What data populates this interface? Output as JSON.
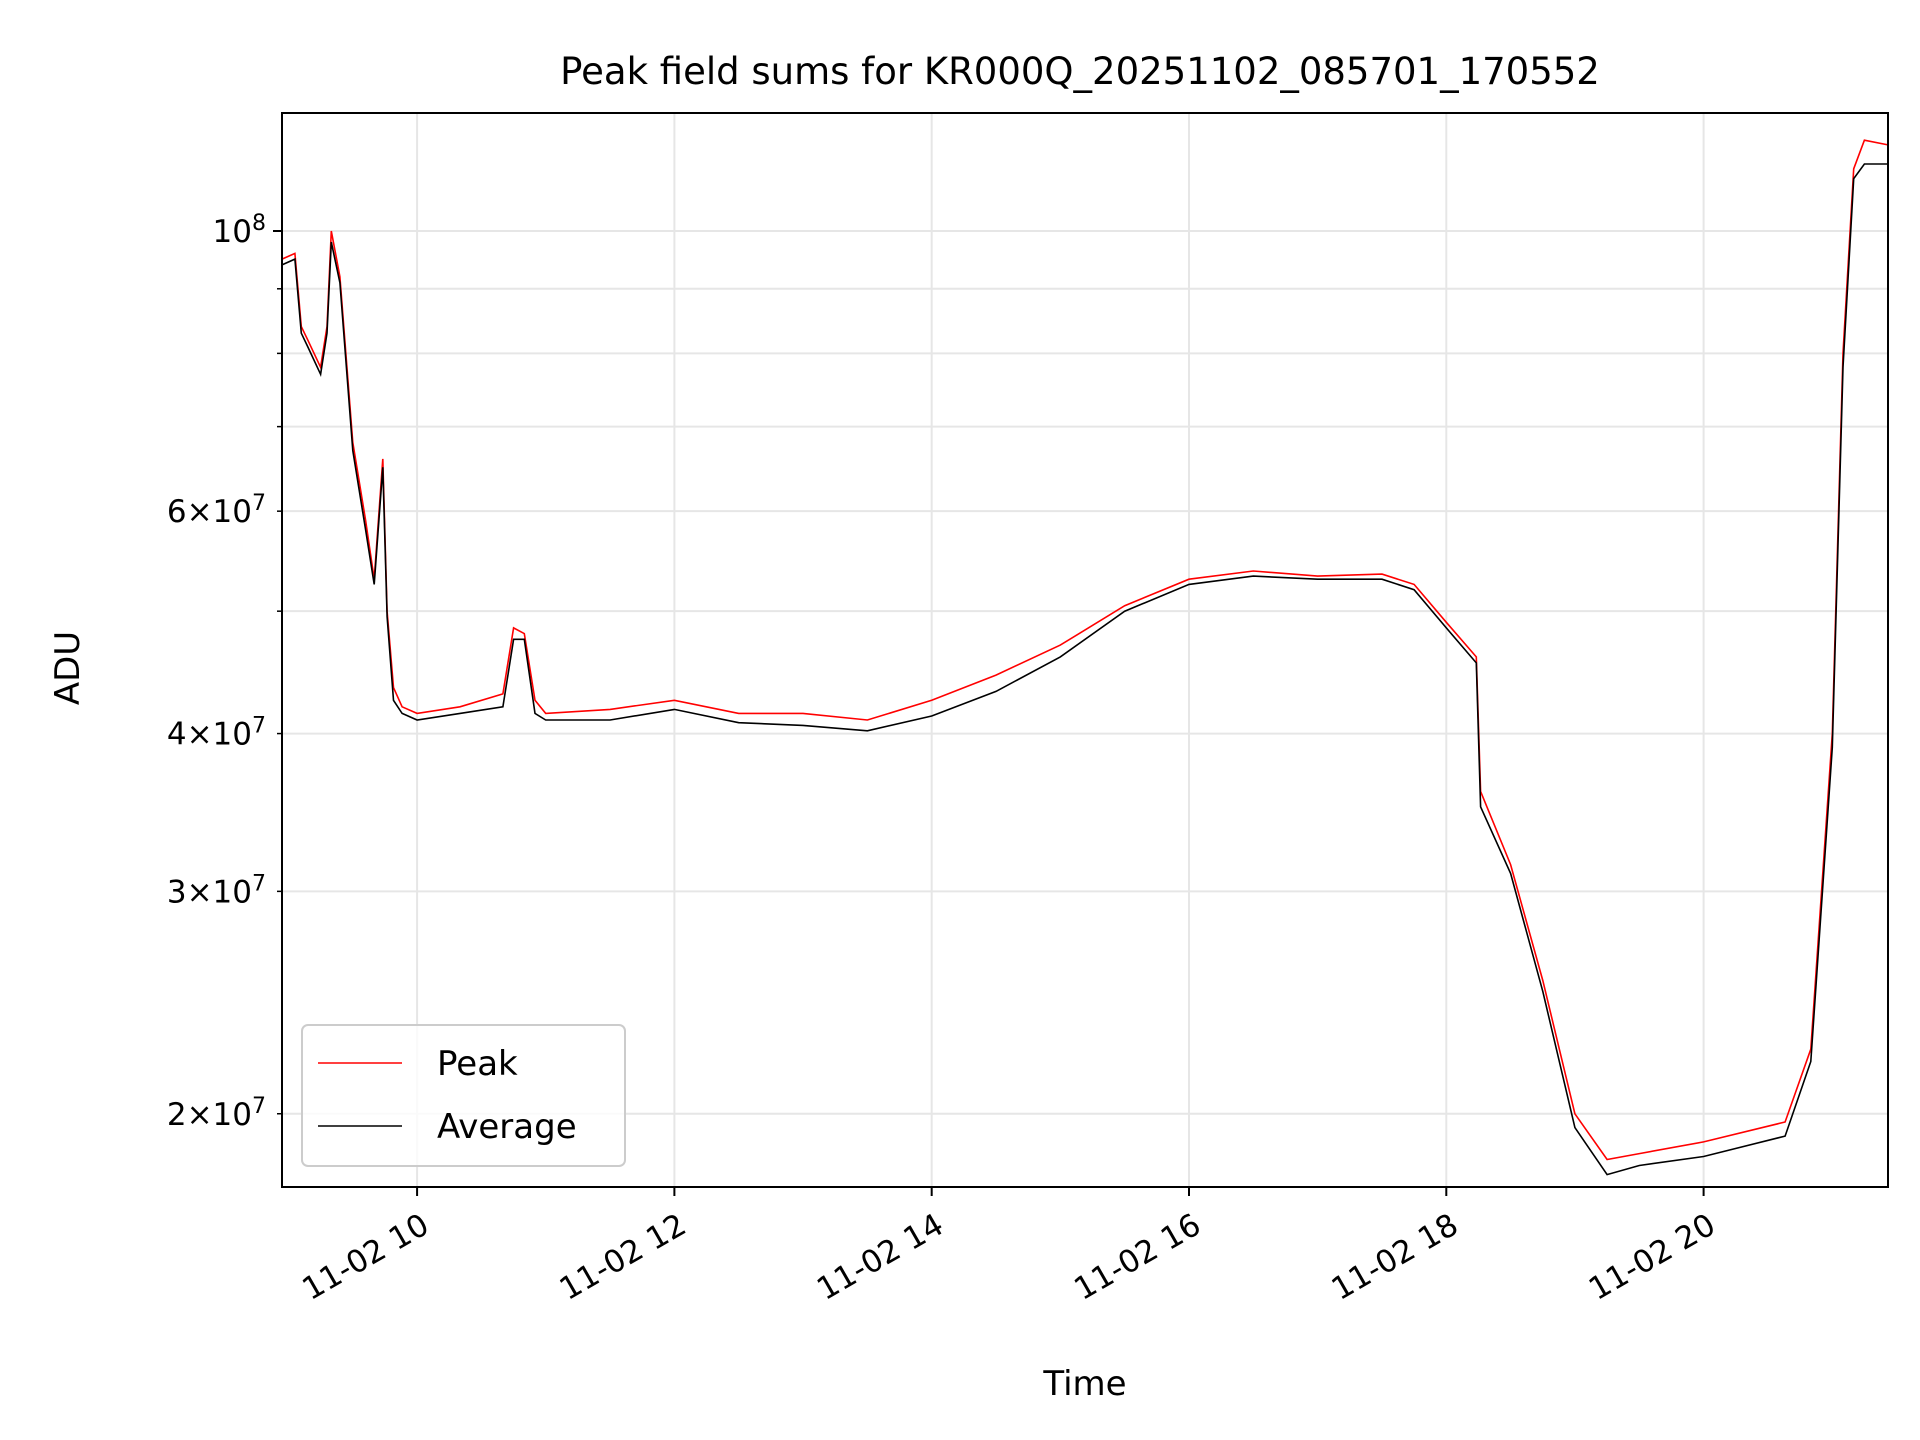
{
  "chart_data": {
    "type": "line",
    "title": "Peak field sums for KR000Q_20251102_085701_170552",
    "xlabel": "Time",
    "ylabel": "ADU",
    "x_tick_labels": [
      "11-02 10",
      "11-02 12",
      "11-02 14",
      "11-02 16",
      "11-02 18",
      "11-02 20"
    ],
    "y_tick_labels": [
      "2×10^7",
      "3×10^7",
      "4×10^7",
      "6×10^7",
      "10^8"
    ],
    "xlim": [
      "2025-11-02 08:57",
      "2025-11-02 21:26"
    ],
    "ylim": [
      17500000,
      124000000
    ],
    "yscale": "log",
    "grid": true,
    "legend_position": "lower-left",
    "colors": {
      "peak": "#ff0000",
      "average": "#000000",
      "grid": "#e6e6e6"
    },
    "series": [
      {
        "name": "Peak",
        "x": [
          "2025-11-02 08:57",
          "2025-11-02 09:03",
          "2025-11-02 09:06",
          "2025-11-02 09:09",
          "2025-11-02 09:15",
          "2025-11-02 09:18",
          "2025-11-02 09:20",
          "2025-11-02 09:24",
          "2025-11-02 09:30",
          "2025-11-02 09:36",
          "2025-11-02 09:40",
          "2025-11-02 09:44",
          "2025-11-02 09:46",
          "2025-11-02 09:49",
          "2025-11-02 09:53",
          "2025-11-02 10:00",
          "2025-11-02 10:20",
          "2025-11-02 10:40",
          "2025-11-02 10:45",
          "2025-11-02 10:50",
          "2025-11-02 10:55",
          "2025-11-02 11:00",
          "2025-11-02 11:30",
          "2025-11-02 12:00",
          "2025-11-02 12:30",
          "2025-11-02 13:00",
          "2025-11-02 13:30",
          "2025-11-02 14:00",
          "2025-11-02 14:30",
          "2025-11-02 15:00",
          "2025-11-02 15:30",
          "2025-11-02 16:00",
          "2025-11-02 16:30",
          "2025-11-02 17:00",
          "2025-11-02 17:30",
          "2025-11-02 17:45",
          "2025-11-02 18:00",
          "2025-11-02 18:14",
          "2025-11-02 18:16",
          "2025-11-02 18:30",
          "2025-11-02 18:45",
          "2025-11-02 19:00",
          "2025-11-02 19:15",
          "2025-11-02 19:30",
          "2025-11-02 20:00",
          "2025-11-02 20:38",
          "2025-11-02 20:50",
          "2025-11-02 21:00",
          "2025-11-02 21:05",
          "2025-11-02 21:10",
          "2025-11-02 21:15",
          "2025-11-02 21:26"
        ],
        "y": [
          95000000,
          96000000,
          84000000,
          82000000,
          78000000,
          84000000,
          100000000,
          92000000,
          68000000,
          59000000,
          53000000,
          66000000,
          50000000,
          43500000,
          42000000,
          41500000,
          42000000,
          43000000,
          48500000,
          48000000,
          42500000,
          41500000,
          41800000,
          42500000,
          41500000,
          41500000,
          41000000,
          42500000,
          44500000,
          47000000,
          50500000,
          53000000,
          53800000,
          53300000,
          53500000,
          52500000,
          49000000,
          46000000,
          36000000,
          31500000,
          25500000,
          20000000,
          18400000,
          18600000,
          19000000,
          19700000,
          22500000,
          40000000,
          80000000,
          112000000,
          118000000,
          117000000
        ]
      },
      {
        "name": "Average",
        "x": [
          "2025-11-02 08:57",
          "2025-11-02 09:03",
          "2025-11-02 09:06",
          "2025-11-02 09:09",
          "2025-11-02 09:15",
          "2025-11-02 09:18",
          "2025-11-02 09:20",
          "2025-11-02 09:24",
          "2025-11-02 09:30",
          "2025-11-02 09:36",
          "2025-11-02 09:40",
          "2025-11-02 09:44",
          "2025-11-02 09:46",
          "2025-11-02 09:49",
          "2025-11-02 09:53",
          "2025-11-02 10:00",
          "2025-11-02 10:20",
          "2025-11-02 10:40",
          "2025-11-02 10:45",
          "2025-11-02 10:50",
          "2025-11-02 10:55",
          "2025-11-02 11:00",
          "2025-11-02 11:30",
          "2025-11-02 12:00",
          "2025-11-02 12:30",
          "2025-11-02 13:00",
          "2025-11-02 13:30",
          "2025-11-02 14:00",
          "2025-11-02 14:30",
          "2025-11-02 15:00",
          "2025-11-02 15:30",
          "2025-11-02 16:00",
          "2025-11-02 16:30",
          "2025-11-02 17:00",
          "2025-11-02 17:30",
          "2025-11-02 17:45",
          "2025-11-02 18:00",
          "2025-11-02 18:14",
          "2025-11-02 18:16",
          "2025-11-02 18:30",
          "2025-11-02 18:45",
          "2025-11-02 19:00",
          "2025-11-02 19:15",
          "2025-11-02 19:30",
          "2025-11-02 20:00",
          "2025-11-02 20:38",
          "2025-11-02 20:50",
          "2025-11-02 21:00",
          "2025-11-02 21:05",
          "2025-11-02 21:10",
          "2025-11-02 21:15",
          "2025-11-02 21:26"
        ],
        "y": [
          94000000,
          95000000,
          83000000,
          81000000,
          77000000,
          83000000,
          98000000,
          91000000,
          67000000,
          58000000,
          52500000,
          65000000,
          49500000,
          42500000,
          41500000,
          41000000,
          41500000,
          42000000,
          47500000,
          47500000,
          41500000,
          41000000,
          41000000,
          41800000,
          40800000,
          40600000,
          40200000,
          41300000,
          43200000,
          46000000,
          50000000,
          52500000,
          53300000,
          53000000,
          53000000,
          52000000,
          48500000,
          45500000,
          35000000,
          31000000,
          25000000,
          19500000,
          17900000,
          18200000,
          18500000,
          19200000,
          22000000,
          39000000,
          78000000,
          110000000,
          113000000,
          113000000
        ]
      }
    ]
  }
}
